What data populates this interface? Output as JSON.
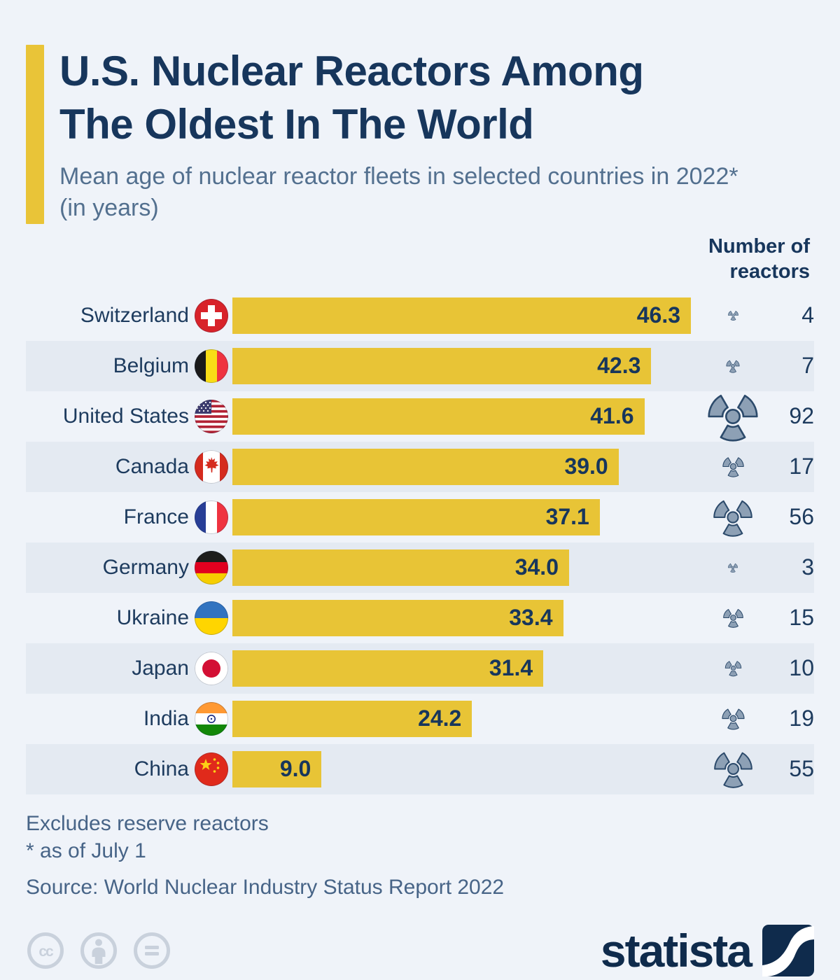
{
  "title": {
    "line1": "U.S. Nuclear Reactors Among",
    "line2": "The Oldest In The World"
  },
  "subtitle": "Mean age of nuclear reactor fleets in selected countries in 2022* (in years)",
  "column_header": "Number of reactors",
  "rows": [
    {
      "country": "Switzerland",
      "value": "46.3",
      "reactors": "4",
      "flag": "ch",
      "flag_icon": "switzerland-flag-icon"
    },
    {
      "country": "Belgium",
      "value": "42.3",
      "reactors": "7",
      "flag": "be",
      "flag_icon": "belgium-flag-icon"
    },
    {
      "country": "United States",
      "value": "41.6",
      "reactors": "92",
      "flag": "us",
      "flag_icon": "united-states-flag-icon"
    },
    {
      "country": "Canada",
      "value": "39.0",
      "reactors": "17",
      "flag": "ca",
      "flag_icon": "canada-flag-icon"
    },
    {
      "country": "France",
      "value": "37.1",
      "reactors": "56",
      "flag": "fr",
      "flag_icon": "france-flag-icon"
    },
    {
      "country": "Germany",
      "value": "34.0",
      "reactors": "3",
      "flag": "de",
      "flag_icon": "germany-flag-icon"
    },
    {
      "country": "Ukraine",
      "value": "33.4",
      "reactors": "15",
      "flag": "ua",
      "flag_icon": "ukraine-flag-icon"
    },
    {
      "country": "Japan",
      "value": "31.4",
      "reactors": "10",
      "flag": "jp",
      "flag_icon": "japan-flag-icon"
    },
    {
      "country": "India",
      "value": "24.2",
      "reactors": "19",
      "flag": "in",
      "flag_icon": "india-flag-icon"
    },
    {
      "country": "China",
      "value": "9.0",
      "reactors": "55",
      "flag": "cn",
      "flag_icon": "china-flag-icon"
    }
  ],
  "chart_data": {
    "type": "bar",
    "orientation": "horizontal",
    "title": "U.S. Nuclear Reactors Among The Oldest In The World",
    "subtitle": "Mean age of nuclear reactor fleets in selected countries in 2022* (in years)",
    "categories": [
      "Switzerland",
      "Belgium",
      "United States",
      "Canada",
      "France",
      "Germany",
      "Ukraine",
      "Japan",
      "India",
      "China"
    ],
    "series": [
      {
        "name": "Mean reactor fleet age (years)",
        "values": [
          46.3,
          42.3,
          41.6,
          39.0,
          37.1,
          34.0,
          33.4,
          31.4,
          24.2,
          9.0
        ]
      },
      {
        "name": "Number of reactors",
        "values": [
          4,
          7,
          92,
          17,
          56,
          3,
          15,
          10,
          19,
          55
        ]
      }
    ],
    "xlim": [
      0,
      46.3
    ],
    "grid": false,
    "value_labels": "inside-bar-end",
    "bar_color": "#e8c436"
  },
  "footer": {
    "note1": "Excludes reserve reactors",
    "note2": "* as of July 1",
    "source": "Source: World Nuclear Industry Status Report 2022"
  },
  "branding": {
    "logo_text": "statista"
  },
  "colors": {
    "background": "#eff3f9",
    "row_stripe": "#e4eaf2",
    "bar_yellow": "#e8c436",
    "accent_yellow": "#e9c438",
    "navy": "#17365c",
    "slate_text": "#53708f",
    "radiation_icon_fill": "#8da0b5",
    "radiation_icon_stroke": "#2c4a6b",
    "cc_gray": "#c9d1dc"
  }
}
